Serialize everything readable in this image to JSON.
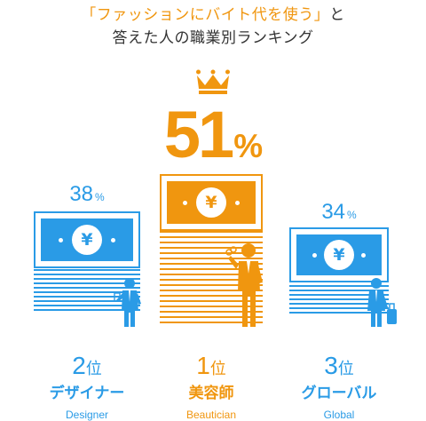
{
  "title": {
    "line1_highlight": "「ファッションにバイト代を使う」",
    "line1_rest": "と",
    "line2": "答えた人の職業別ランキング"
  },
  "colors": {
    "gold": "#f0960f",
    "blue": "#2a9be6",
    "text": "#333333"
  },
  "currency_symbol": "¥",
  "ranking": [
    {
      "rank_number": "1",
      "rank_suffix": "位",
      "percent_value": "51",
      "percent_unit": "%",
      "job_name": "美容師",
      "job_english": "Beautician",
      "color": "#f0960f",
      "icon": "hairdresser-icon"
    },
    {
      "rank_number": "2",
      "rank_suffix": "位",
      "percent_value": "38",
      "percent_unit": "%",
      "job_name": "デザイナー",
      "job_english": "Designer",
      "color": "#2a9be6",
      "icon": "designer-icon"
    },
    {
      "rank_number": "3",
      "rank_suffix": "位",
      "percent_value": "34",
      "percent_unit": "%",
      "job_name": "グローバル",
      "job_english": "Global",
      "color": "#2a9be6",
      "icon": "traveler-icon"
    }
  ],
  "crown_icon": "crown-icon",
  "banknote_icon": "yen-banknote-icon"
}
